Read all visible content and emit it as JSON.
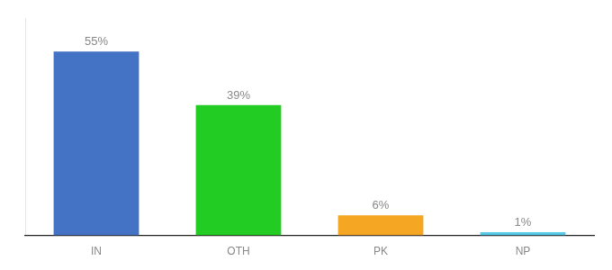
{
  "chart_data": {
    "type": "bar",
    "categories": [
      "IN",
      "OTH",
      "PK",
      "NP"
    ],
    "values": [
      55,
      39,
      6,
      1
    ],
    "value_labels": [
      "55%",
      "39%",
      "6%",
      "1%"
    ],
    "colors": [
      "#4472c4",
      "#22cc22",
      "#f5a623",
      "#56c8e8"
    ],
    "ylim": [
      0,
      65
    ],
    "grid": false,
    "legend": false,
    "data_labels": true,
    "tick_labels": "x"
  }
}
